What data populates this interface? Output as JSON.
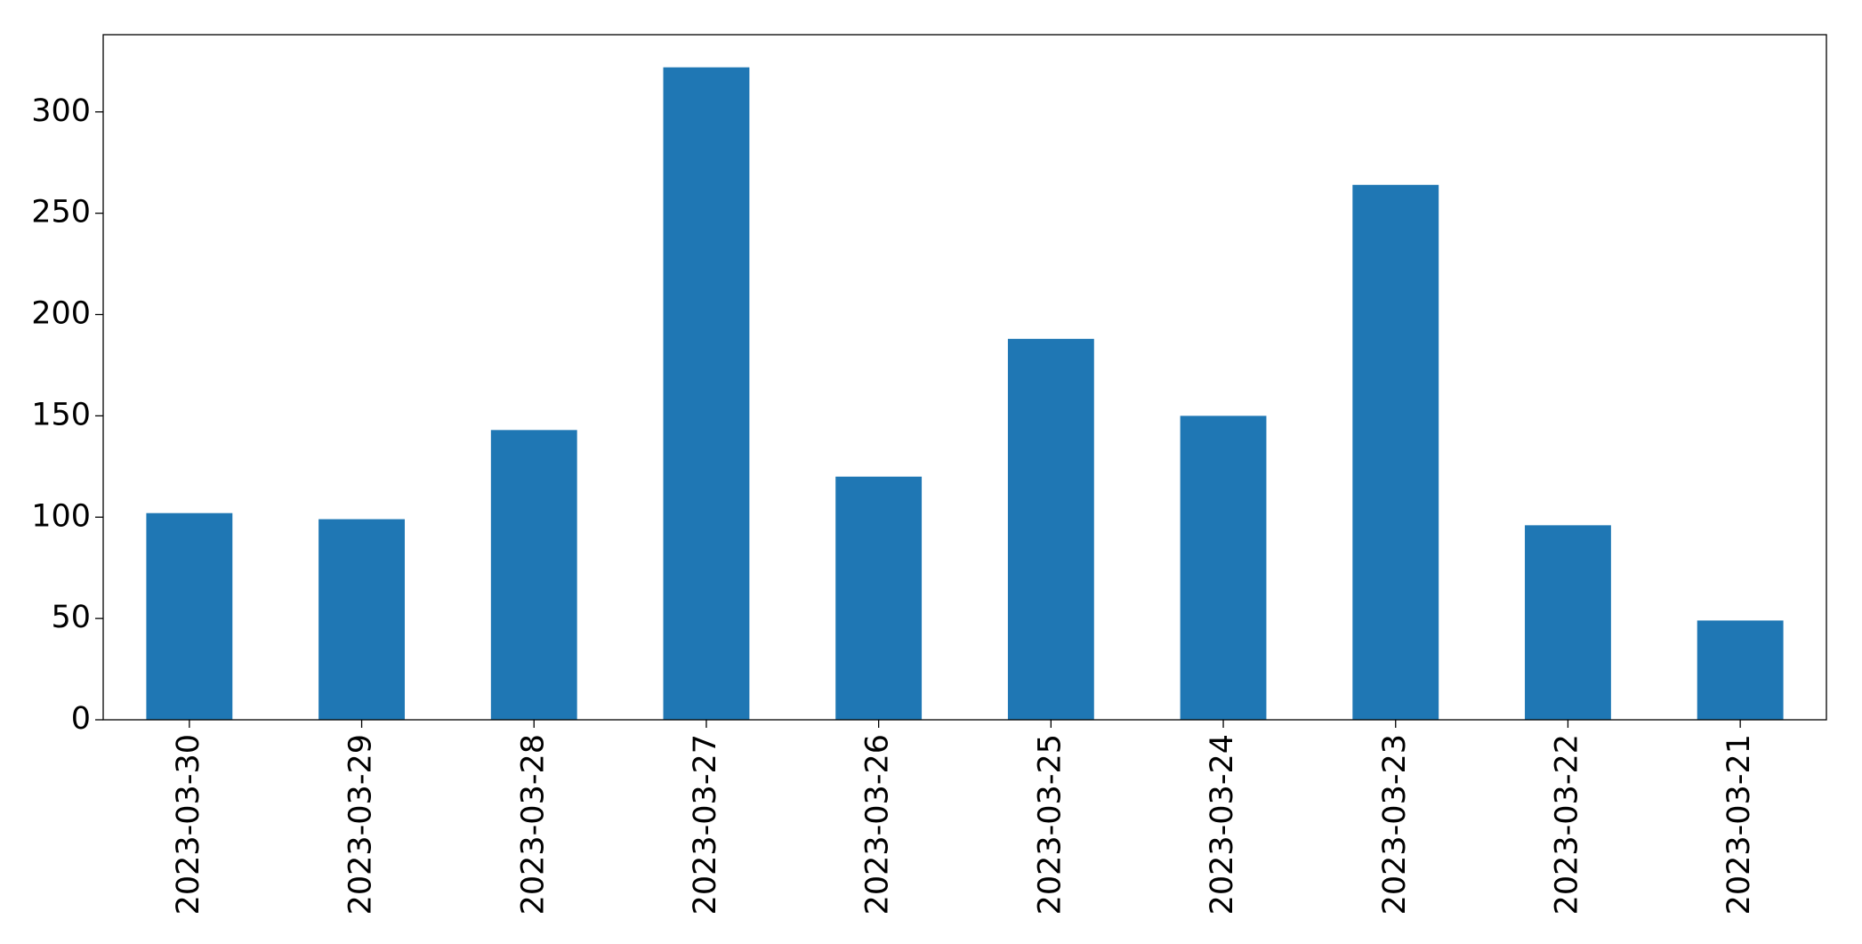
{
  "chart_data": {
    "type": "bar",
    "categories": [
      "2023-03-30",
      "2023-03-29",
      "2023-03-28",
      "2023-03-27",
      "2023-03-26",
      "2023-03-25",
      "2023-03-24",
      "2023-03-23",
      "2023-03-22",
      "2023-03-21"
    ],
    "values": [
      102,
      99,
      143,
      322,
      120,
      188,
      150,
      264,
      96,
      49
    ],
    "color": "#1f77b4",
    "ylim": [
      0,
      338.1
    ],
    "yticks": [
      0,
      50,
      100,
      150,
      200,
      250,
      300
    ],
    "grid": false
  }
}
